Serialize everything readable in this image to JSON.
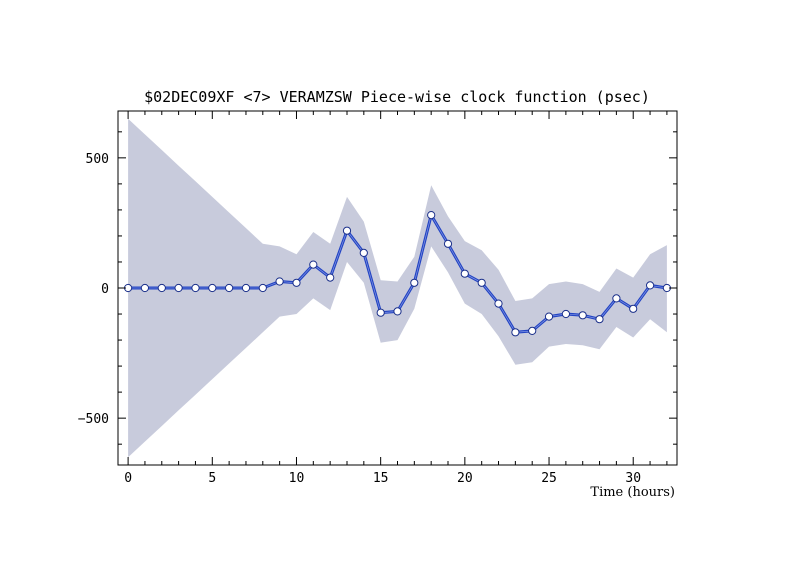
{
  "chart_data": {
    "type": "line",
    "title": "$02DEC09XF <7>  VERAMZSW  Piece-wise clock function (psec)",
    "xlabel": "Time (hours)",
    "ylabel": "",
    "xlim": [
      -0.6,
      32.6
    ],
    "ylim": [
      -680,
      680
    ],
    "x_ticks": [
      0,
      5,
      10,
      15,
      20,
      25,
      30
    ],
    "y_ticks": [
      -500,
      0,
      500
    ],
    "x_tick_labels": [
      "0",
      "5",
      "10",
      "15",
      "20",
      "25",
      "30"
    ],
    "y_tick_labels": [
      "−500",
      "0",
      "500"
    ],
    "grid": false,
    "colors": {
      "line": "#2445c4",
      "band": "#c8cbdc",
      "marker_fill": "#ffffff"
    },
    "x": [
      0,
      1,
      2,
      3,
      4,
      5,
      6,
      7,
      8,
      9,
      10,
      11,
      12,
      13,
      14,
      15,
      16,
      17,
      18,
      19,
      20,
      21,
      22,
      23,
      24,
      25,
      26,
      27,
      28,
      29,
      30,
      31,
      32
    ],
    "series": [
      {
        "values": [
          0,
          0,
          0,
          0,
          0,
          0,
          0,
          0,
          0,
          25,
          20,
          90,
          40,
          220,
          135,
          -95,
          -90,
          20,
          280,
          170,
          55,
          20,
          -60,
          -170,
          -165,
          -110,
          -100,
          -105,
          -120,
          -40,
          -80,
          10,
          0
        ]
      }
    ],
    "band_upper": [
      650,
      590,
      530,
      470,
      410,
      350,
      290,
      230,
      170,
      160,
      130,
      215,
      170,
      350,
      255,
      30,
      25,
      120,
      395,
      275,
      180,
      145,
      70,
      -50,
      -40,
      15,
      25,
      15,
      -15,
      75,
      40,
      130,
      165
    ],
    "band_lower": [
      -650,
      -590,
      -530,
      -470,
      -410,
      -350,
      -290,
      -230,
      -170,
      -110,
      -100,
      -40,
      -85,
      100,
      20,
      -210,
      -200,
      -80,
      160,
      60,
      -60,
      -100,
      -185,
      -295,
      -285,
      -225,
      -215,
      -220,
      -235,
      -150,
      -190,
      -120,
      -170
    ]
  }
}
